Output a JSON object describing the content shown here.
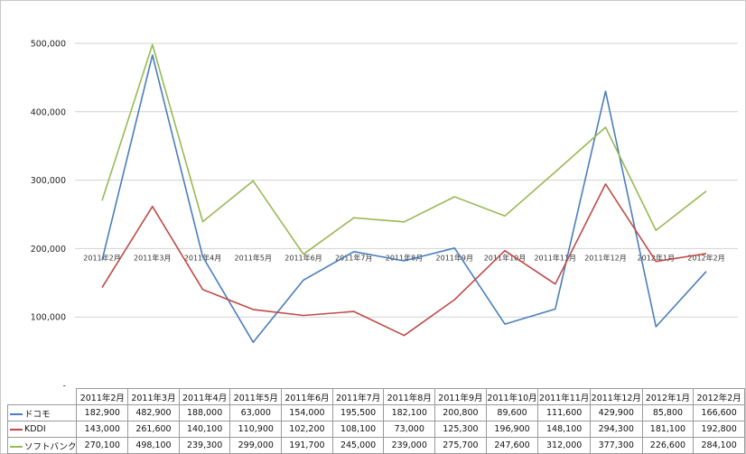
{
  "chart_data": {
    "type": "line",
    "categories": [
      "2011年2月",
      "2011年3月",
      "2011年4月",
      "2011年5月",
      "2011年6月",
      "2011年7月",
      "2011年8月",
      "2011年9月",
      "2011年10月",
      "2011年11月",
      "2011年12月",
      "2012年1月",
      "2012年2月"
    ],
    "series": [
      {
        "name": "ドコモ",
        "color": "#4a7ebb",
        "values": [
          182900,
          482900,
          188000,
          63000,
          154000,
          195500,
          182100,
          200800,
          89600,
          111600,
          429900,
          85800,
          166600
        ]
      },
      {
        "name": "KDDI",
        "color": "#be4b48",
        "values": [
          143000,
          261600,
          140100,
          110900,
          102200,
          108100,
          73000,
          125300,
          196900,
          148100,
          294300,
          181100,
          192800
        ]
      },
      {
        "name": "ソフトバンク",
        "color": "#98b954",
        "values": [
          270100,
          498100,
          239300,
          299000,
          191700,
          245000,
          239000,
          275700,
          247600,
          312000,
          377300,
          226600,
          284100
        ]
      }
    ],
    "ylim": [
      0,
      500000
    ],
    "yticks": [
      0,
      100000,
      200000,
      300000,
      400000,
      500000
    ],
    "ytick_labels": [
      "-",
      "100,000",
      "200,000",
      "300,000",
      "400,000",
      "500,000"
    ],
    "table": {
      "rows": [
        [
          "182,900",
          "482,900",
          "188,000",
          "63,000",
          "154,000",
          "195,500",
          "182,100",
          "200,800",
          "89,600",
          "111,600",
          "429,900",
          "85,800",
          "166,600"
        ],
        [
          "143,000",
          "261,600",
          "140,100",
          "110,900",
          "102,200",
          "108,100",
          "73,000",
          "125,300",
          "196,900",
          "148,100",
          "294,300",
          "181,100",
          "192,800"
        ],
        [
          "270,100",
          "498,100",
          "239,300",
          "299,000",
          "191,700",
          "245,000",
          "239,000",
          "275,700",
          "247,600",
          "312,000",
          "377,300",
          "226,600",
          "284,100"
        ]
      ]
    },
    "grid": true,
    "legend": "table-left",
    "title": "",
    "xlabel": "",
    "ylabel": ""
  }
}
